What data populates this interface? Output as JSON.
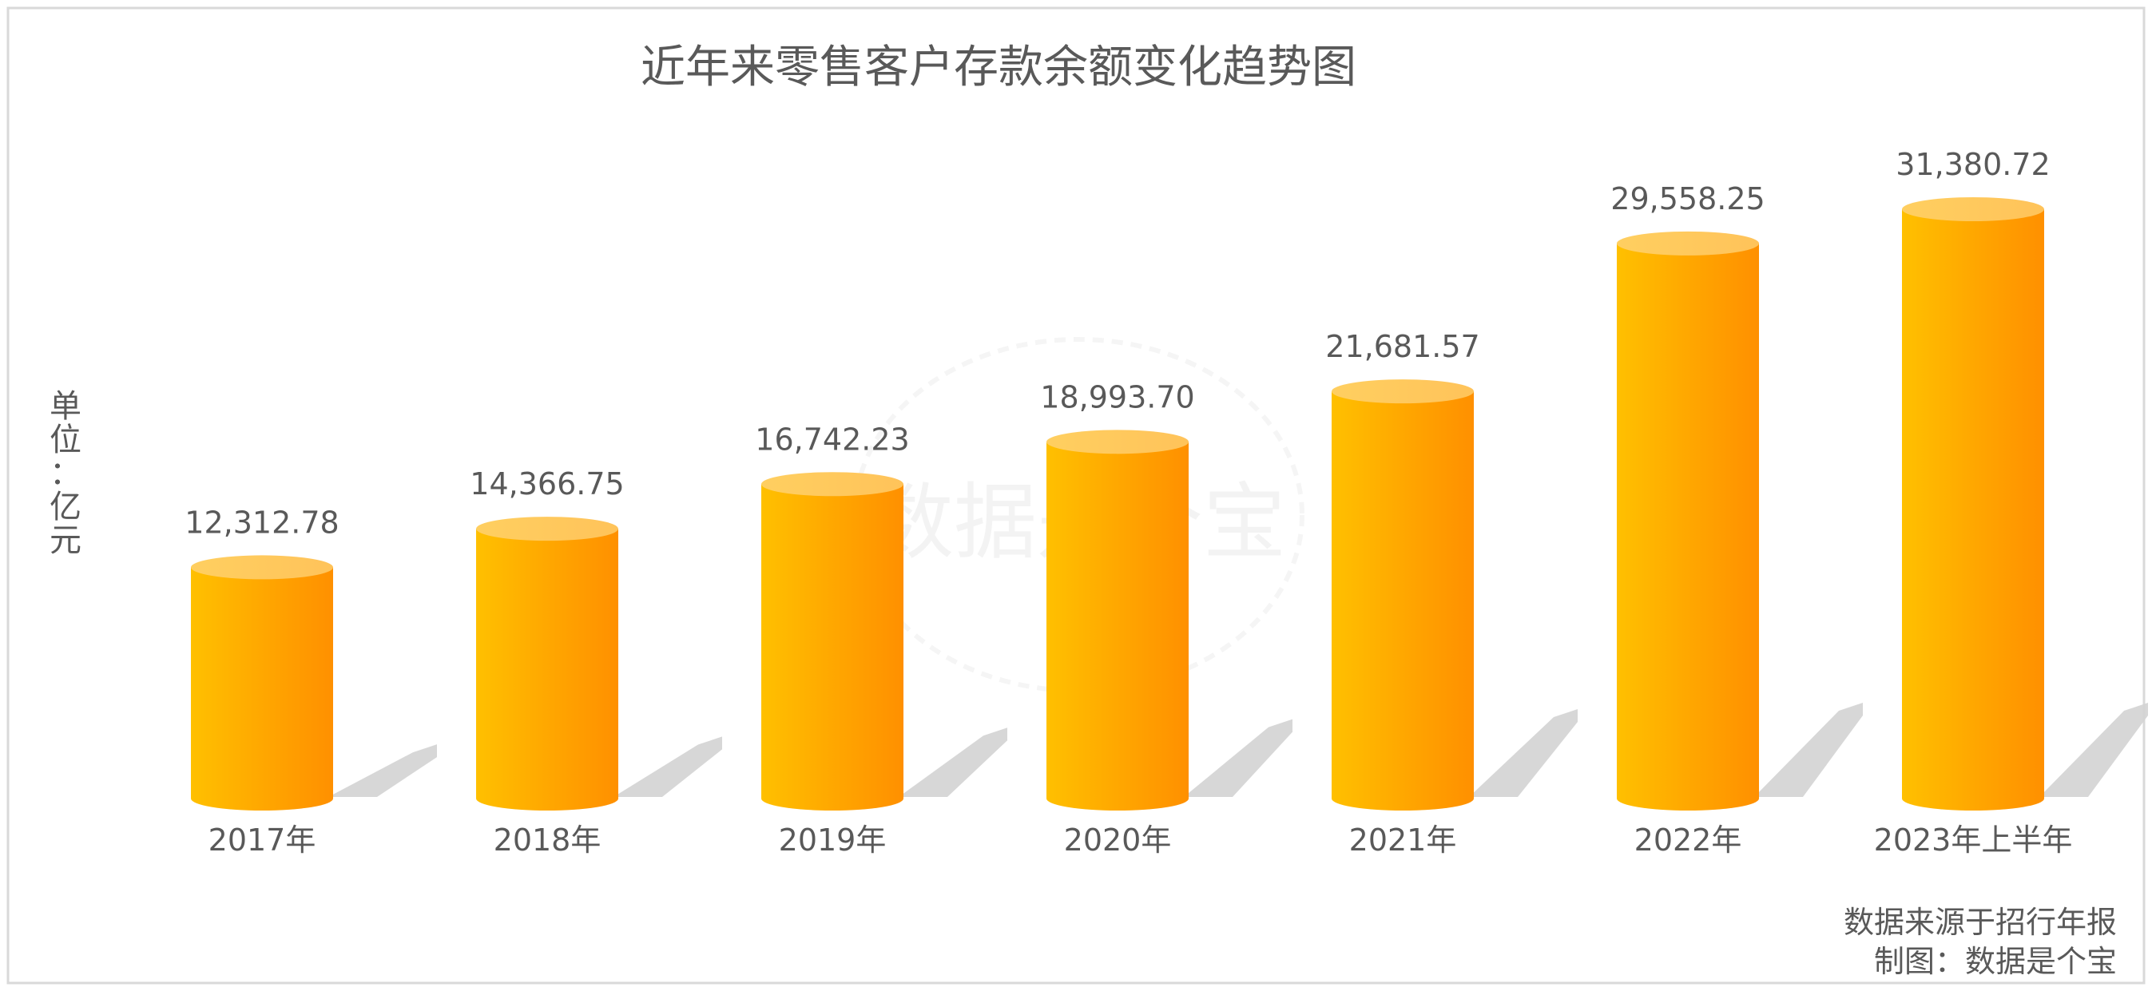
{
  "chart_data": {
    "type": "bar",
    "title": "近年来零售客户存款余额变化趋势图",
    "unit_label": "单位：亿元",
    "categories": [
      "2017年",
      "2018年",
      "2019年",
      "2020年",
      "2021年",
      "2022年",
      "2023年上半年"
    ],
    "values": [
      12312.78,
      14366.75,
      16742.23,
      18993.7,
      21681.57,
      29558.25,
      31380.72
    ],
    "value_labels": [
      "12,312.78",
      "14,366.75",
      "16,742.23",
      "18,993.70",
      "21,681.57",
      "29,558.25",
      "31,380.72"
    ],
    "ylim": [
      0,
      33000
    ],
    "grid": false,
    "legend": "none",
    "watermark": "数据是个宝",
    "source_lines": [
      "数据来源于招行年报",
      "制图：数据是个宝"
    ],
    "colors": {
      "bar_left": "#FFC000",
      "bar_right": "#FF9000",
      "bar_top": "#FFD26E",
      "shadow": "#D3D3D3",
      "text": "#595959",
      "frame": "#D9D9D9"
    }
  }
}
